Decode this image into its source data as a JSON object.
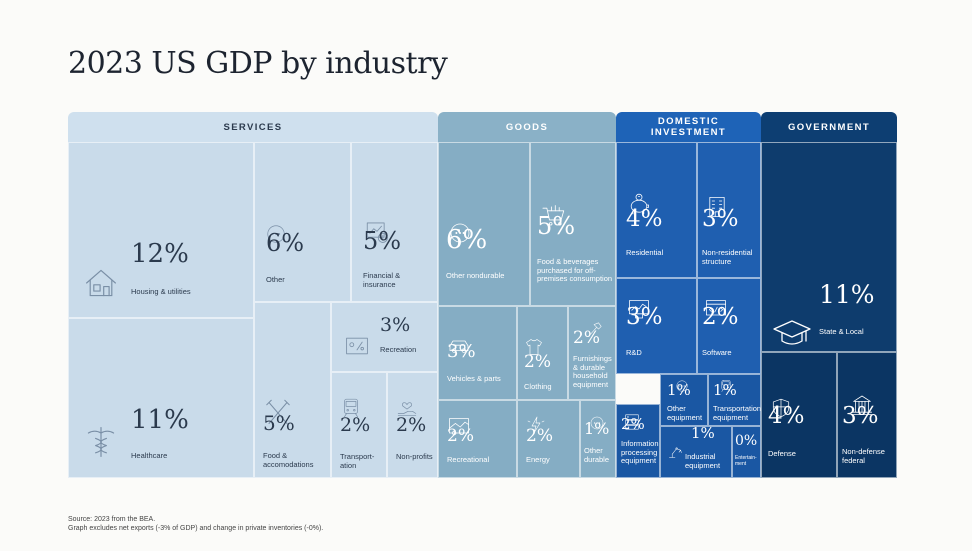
{
  "title": "2023 US GDP by industry",
  "source": "Source: 2023 from the BEA.\nGraph excludes net exports (-3% of GDP) and change in private inventories (-0%).",
  "colors": {
    "services": "#c9dbea",
    "goods": "#85adc4",
    "investment": "#1f5fb0",
    "government": "#0e3c6d"
  },
  "chart_data": {
    "type": "treemap",
    "title": "2023 US GDP by industry",
    "unit": "% of GDP",
    "groups": [
      {
        "name": "SERVICES",
        "items": [
          {
            "label": "Housing & utilities",
            "value": 12,
            "display": "12%",
            "icon": "house-icon"
          },
          {
            "label": "Healthcare",
            "value": 11,
            "display": "11%",
            "icon": "caduceus-icon"
          },
          {
            "label": "Other",
            "value": 6,
            "display": "6%",
            "icon": "dots-circle-icon"
          },
          {
            "label": "Financial & insurance",
            "value": 5,
            "display": "5%",
            "icon": "finance-icon"
          },
          {
            "label": "Food & accomodations",
            "value": 5,
            "display": "5%",
            "icon": "utensils-icon"
          },
          {
            "label": "Recreation",
            "value": 3,
            "display": "3%",
            "icon": "recreation-icon"
          },
          {
            "label": "Transport-ation",
            "value": 2,
            "display": "2%",
            "icon": "train-icon"
          },
          {
            "label": "Non-profits",
            "value": 2,
            "display": "2%",
            "icon": "hand-heart-icon"
          }
        ]
      },
      {
        "name": "GOODS",
        "items": [
          {
            "label": "Other nondurable",
            "value": 6,
            "display": "6%",
            "icon": "dots-circle-icon"
          },
          {
            "label": "Food & beverages purchased for off-premises consumption",
            "value": 5,
            "display": "5%",
            "icon": "grocery-cart-icon"
          },
          {
            "label": "Vehicles & parts",
            "value": 3,
            "display": "3%",
            "icon": "car-icon"
          },
          {
            "label": "Clothing",
            "value": 2,
            "display": "2%",
            "icon": "shirt-icon"
          },
          {
            "label": "Furnishings & durable household equipment",
            "value": 2,
            "display": "2%",
            "icon": "hammer-icon"
          },
          {
            "label": "Recreational",
            "value": 2,
            "display": "2%",
            "icon": "recreational-icon"
          },
          {
            "label": "Energy",
            "value": 2,
            "display": "2%",
            "icon": "energy-icon"
          },
          {
            "label": "Other durable",
            "value": 1,
            "display": "1%",
            "icon": "dots-circle-icon"
          }
        ]
      },
      {
        "name": "DOMESTIC INVESTMENT",
        "items": [
          {
            "label": "Residential",
            "value": 4,
            "display": "4%",
            "icon": "piggy-bank-icon"
          },
          {
            "label": "Non-residential structure",
            "value": 3,
            "display": "3%",
            "icon": "building-icon"
          },
          {
            "label": "R&D",
            "value": 3,
            "display": "3%",
            "icon": "research-icon"
          },
          {
            "label": "Software",
            "value": 2,
            "display": "2%",
            "icon": "software-icon"
          },
          {
            "label": "Other equipment",
            "value": 1,
            "display": "1%",
            "icon": "dots-circle-icon"
          },
          {
            "label": "Transportation equipment",
            "value": 1,
            "display": "1%",
            "icon": "train-icon"
          },
          {
            "label": "Information processing equipment",
            "value": 2,
            "display": "2%",
            "icon": "server-icon"
          },
          {
            "label": "Industrial equipment",
            "value": 1,
            "display": "1%",
            "icon": "robot-arm-icon"
          },
          {
            "label": "Entertain-ment",
            "value": 0,
            "display": "0%",
            "icon": ""
          }
        ]
      },
      {
        "name": "GOVERNMENT",
        "items": [
          {
            "label": "State & Local",
            "value": 11,
            "display": "11%",
            "icon": "mortarboard-icon"
          },
          {
            "label": "Defense",
            "value": 4,
            "display": "4%",
            "icon": "shield-icon"
          },
          {
            "label": "Non-defense federal",
            "value": 3,
            "display": "3%",
            "icon": "capitol-icon"
          }
        ]
      }
    ]
  }
}
